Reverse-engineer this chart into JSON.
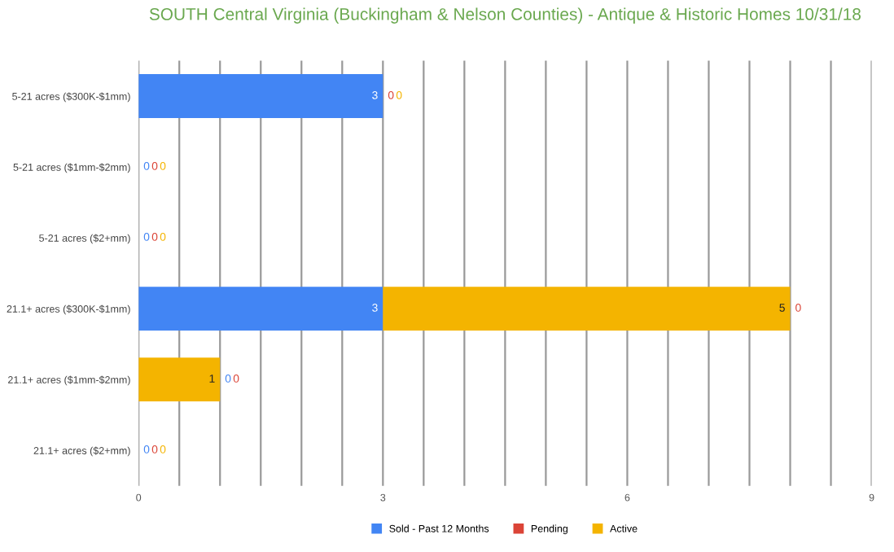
{
  "chart_data": {
    "type": "bar",
    "orientation": "horizontal",
    "stacked": true,
    "title": "SOUTH Central Virginia (Buckingham & Nelson Counties) - Antique & Historic Homes 10/31/18",
    "categories": [
      "5-21 acres ($300K-$1mm)",
      "5-21 acres ($1mm-$2mm)",
      "5-21 acres ($2+mm)",
      "21.1+ acres ($300K-$1mm)",
      "21.1+ acres ($1mm-$2mm)",
      "21.1+ acres ($2+mm)"
    ],
    "series": [
      {
        "name": "Sold - Past 12 Months",
        "color": "#4285f4",
        "values": [
          3,
          0,
          0,
          3,
          0,
          0
        ]
      },
      {
        "name": "Pending",
        "color": "#db4437",
        "values": [
          0,
          0,
          0,
          0,
          0,
          0
        ]
      },
      {
        "name": "Active",
        "color": "#f4b400",
        "values": [
          0,
          0,
          0,
          5,
          1,
          0
        ]
      }
    ],
    "xlim": [
      0,
      9
    ],
    "xticks": [
      0,
      {
        "value": 0.5,
        "label": null
      },
      {
        "value": 1,
        "label": null
      },
      {
        "value": 1.5,
        "label": null
      },
      {
        "value": 2,
        "label": null
      },
      {
        "value": 2.5,
        "label": null
      },
      3,
      {
        "value": 3.5,
        "label": null
      },
      {
        "value": 4,
        "label": null
      },
      {
        "value": 4.5,
        "label": null
      },
      {
        "value": 5,
        "label": null
      },
      {
        "value": 5.5,
        "label": null
      },
      6,
      {
        "value": 6.5,
        "label": null
      },
      {
        "value": 7,
        "label": null
      },
      {
        "value": 7.5,
        "label": null
      },
      {
        "value": 8,
        "label": null
      },
      {
        "value": 8.5,
        "label": null
      },
      9
    ],
    "grid": "x",
    "legend": "bottom",
    "data_labels": true
  }
}
